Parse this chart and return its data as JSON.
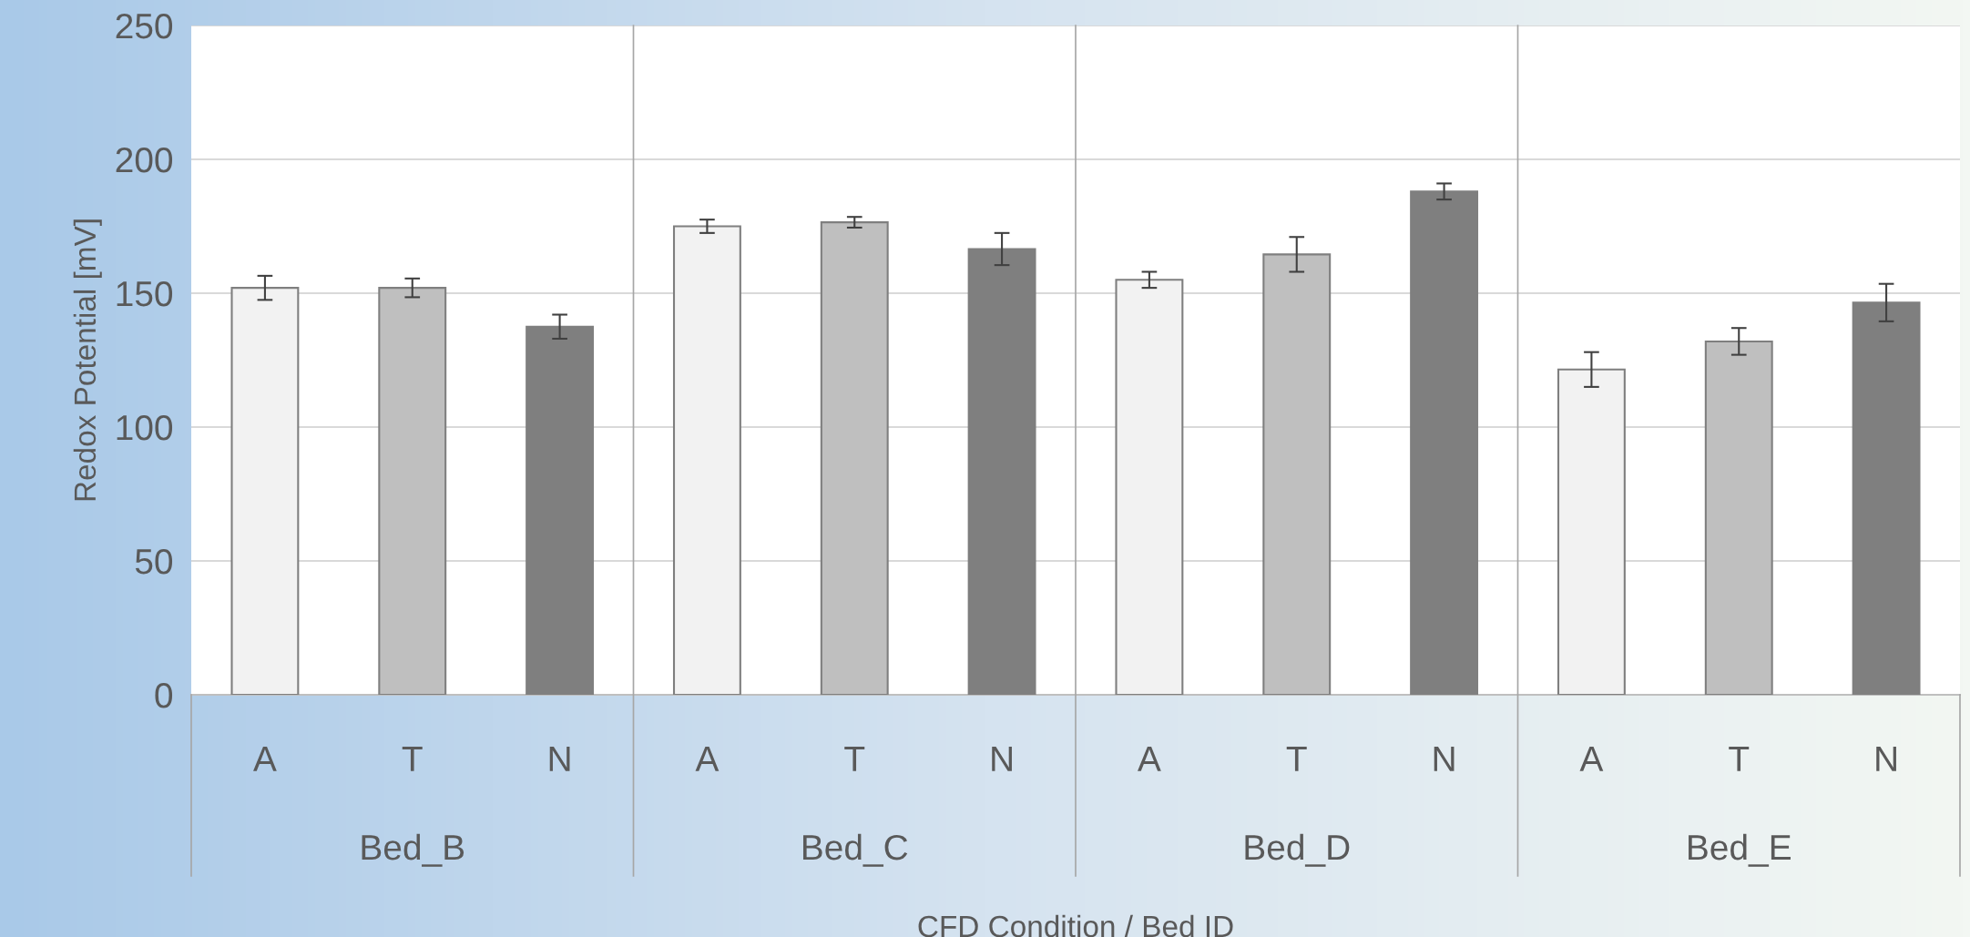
{
  "chart_data": {
    "type": "bar",
    "xlabel": "CFD Condition / Bed ID",
    "ylabel": "Redox Potential [mV]",
    "categories": [
      "A",
      "T",
      "N",
      "A",
      "T",
      "N",
      "A",
      "T",
      "N",
      "A",
      "T",
      "N"
    ],
    "values": [
      152,
      152,
      137.5,
      175,
      176.5,
      166.5,
      155,
      164.5,
      188,
      121.5,
      132,
      146.5
    ],
    "errors": [
      4.5,
      3.5,
      4.5,
      2.5,
      2,
      6,
      3,
      6.5,
      3,
      6.5,
      5,
      7
    ],
    "colors": [
      "#f2f2f2",
      "#bfbfbf",
      "#7f7f7f",
      "#f2f2f2",
      "#bfbfbf",
      "#7f7f7f",
      "#f2f2f2",
      "#bfbfbf",
      "#7f7f7f",
      "#f2f2f2",
      "#bfbfbf",
      "#7f7f7f"
    ],
    "annotations": [
      "Bed_B",
      "Bed_C",
      "Bed_D",
      "Bed_E"
    ],
    "ylim": [
      0,
      250
    ],
    "yticks": [
      0,
      50,
      100,
      150,
      200,
      250
    ],
    "grid": "y"
  }
}
